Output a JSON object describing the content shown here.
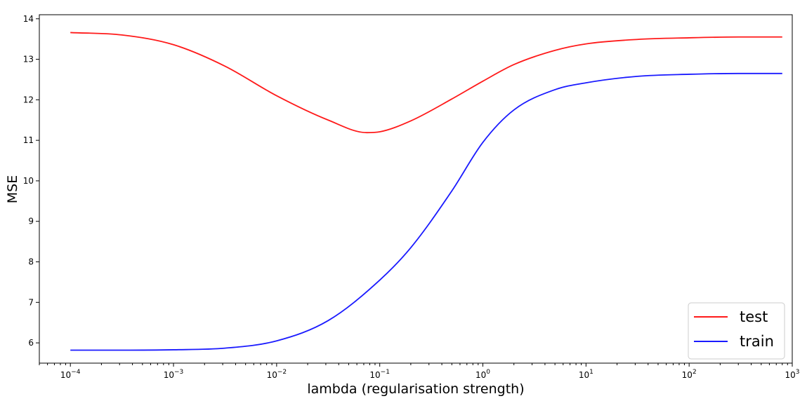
{
  "chart_data": {
    "type": "line",
    "title": "",
    "xlabel": "lambda (regularisation strength)",
    "ylabel": "MSE",
    "xscale": "log",
    "xlim": [
      5e-05,
      1000
    ],
    "ylim": [
      5.5,
      14.1
    ],
    "grid": false,
    "legend_position": "lower-right",
    "x_ticks": [
      {
        "value": 0.0001,
        "base": "10",
        "exp": "−4"
      },
      {
        "value": 0.001,
        "base": "10",
        "exp": "−3"
      },
      {
        "value": 0.01,
        "base": "10",
        "exp": "−2"
      },
      {
        "value": 0.1,
        "base": "10",
        "exp": "−1"
      },
      {
        "value": 1,
        "base": "10",
        "exp": "0"
      },
      {
        "value": 10,
        "base": "10",
        "exp": "1"
      },
      {
        "value": 100,
        "base": "10",
        "exp": "2"
      },
      {
        "value": 1000,
        "base": "10",
        "exp": "3"
      }
    ],
    "y_ticks": [
      "6",
      "7",
      "8",
      "9",
      "10",
      "11",
      "12",
      "13",
      "14"
    ],
    "series": [
      {
        "name": "test",
        "color": "#ff1a1a",
        "x": [
          0.0001,
          0.000316,
          0.001,
          0.00316,
          0.01,
          0.0316,
          0.075,
          0.1,
          0.2,
          0.5,
          1,
          2,
          5,
          10,
          31.6,
          100,
          300,
          800
        ],
        "y": [
          13.66,
          13.6,
          13.36,
          12.83,
          12.1,
          11.5,
          11.19,
          11.21,
          11.48,
          12.02,
          12.46,
          12.87,
          13.22,
          13.38,
          13.49,
          13.53,
          13.55,
          13.55
        ]
      },
      {
        "name": "train",
        "color": "#1a1aff",
        "x": [
          0.0001,
          0.000316,
          0.001,
          0.00316,
          0.01,
          0.0316,
          0.1,
          0.2,
          0.5,
          1,
          2,
          5,
          10,
          31.6,
          100,
          300,
          800
        ],
        "y": [
          5.82,
          5.82,
          5.83,
          5.87,
          6.05,
          6.55,
          7.55,
          8.35,
          9.75,
          10.95,
          11.75,
          12.25,
          12.42,
          12.58,
          12.63,
          12.65,
          12.65
        ]
      }
    ]
  }
}
